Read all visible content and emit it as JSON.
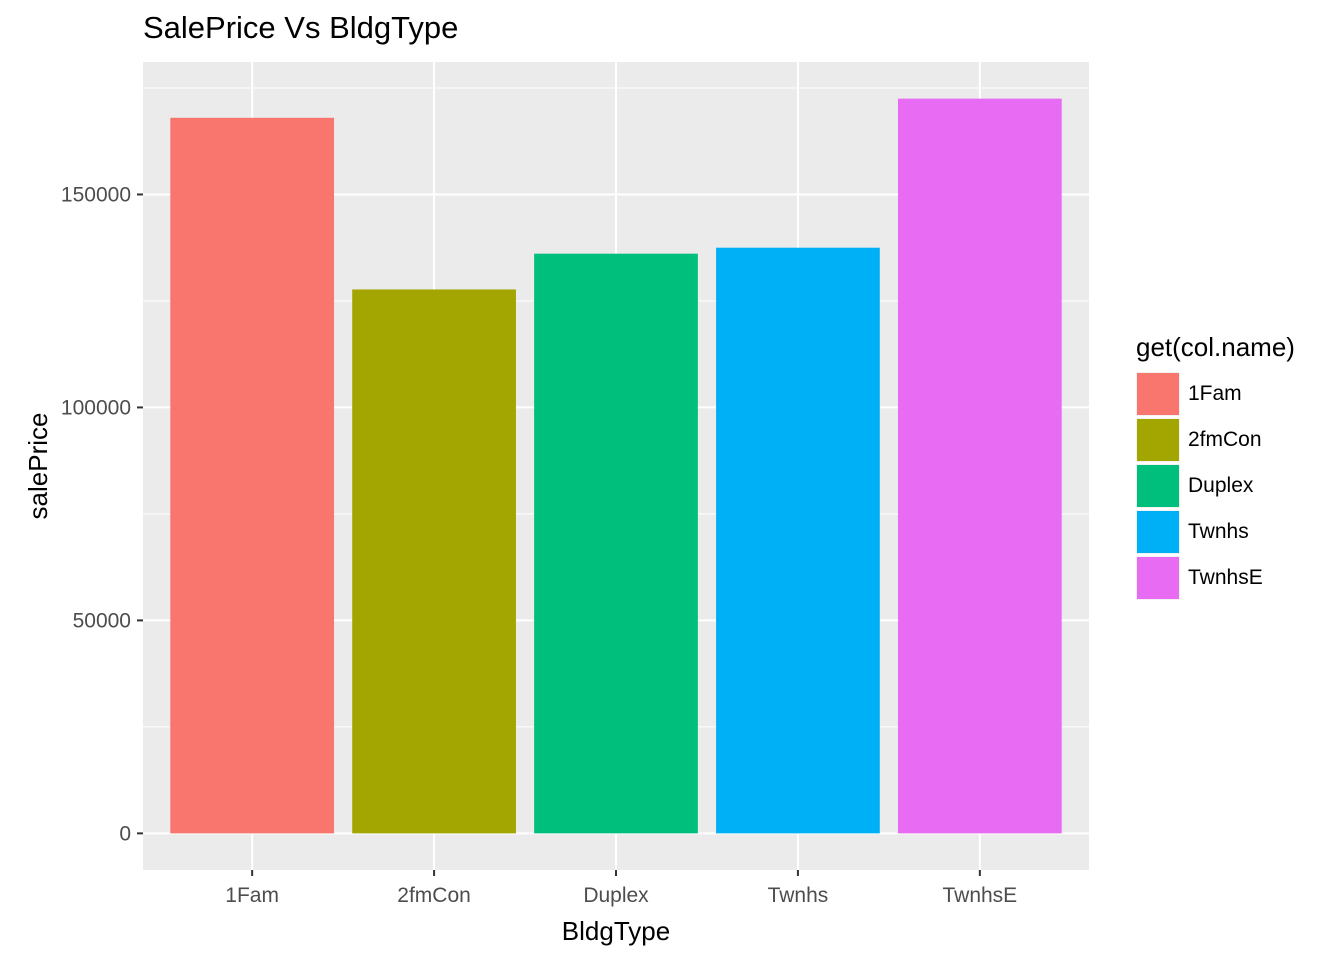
{
  "chart_data": {
    "type": "bar",
    "title": "SalePrice Vs BldgType",
    "xlabel": "BldgType",
    "ylabel": "salePrice",
    "categories": [
      "1Fam",
      "2fmCon",
      "Duplex",
      "Twnhs",
      "TwnhsE"
    ],
    "values": [
      168000,
      127700,
      136100,
      137500,
      172500
    ],
    "colors": [
      "#F8766D",
      "#A3A500",
      "#00BF7D",
      "#00B0F6",
      "#E76BF3"
    ],
    "yticks": [
      0,
      50000,
      100000,
      150000
    ],
    "ytick_labels": [
      "0",
      "50000",
      "100000",
      "150000"
    ],
    "ylim": [
      -8600,
      181100
    ],
    "grid": true,
    "legend": {
      "title": "get(col.name)",
      "position": "right",
      "entries": [
        "1Fam",
        "2fmCon",
        "Duplex",
        "Twnhs",
        "TwnhsE"
      ]
    }
  }
}
